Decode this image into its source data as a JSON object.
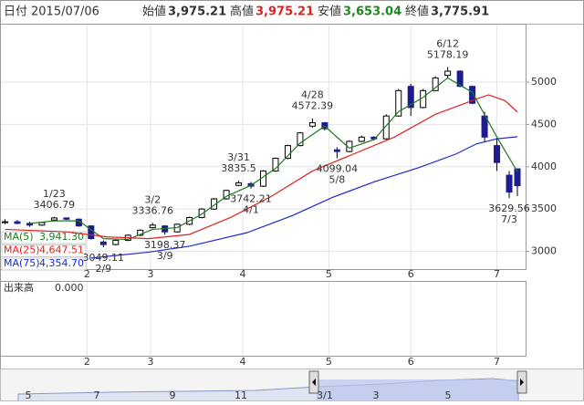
{
  "header": {
    "date_label": "日付",
    "date": "2015/07/06",
    "open_label": "始値",
    "open": "3,975.21",
    "high_label": "高値",
    "high": "3,975.21",
    "low_label": "安値",
    "low": "3,653.04",
    "close_label": "終値",
    "close": "3,775.91"
  },
  "chart_data": {
    "type": "candlestick",
    "x": [
      0,
      3,
      6,
      9,
      12,
      15,
      18,
      21,
      24,
      27,
      30,
      33,
      36,
      39,
      42,
      45,
      48,
      51,
      54,
      57,
      60,
      63,
      66,
      69,
      72,
      75,
      78,
      81,
      84,
      87,
      90,
      93,
      96,
      99,
      102,
      105,
      108,
      111,
      114,
      117,
      120,
      123,
      125
    ],
    "open": [
      3340,
      3350,
      3330,
      3310,
      3370,
      3395,
      3380,
      3300,
      3110,
      3080,
      3130,
      3190,
      3280,
      3300,
      3230,
      3320,
      3400,
      3500,
      3620,
      3780,
      3800,
      3770,
      3950,
      4100,
      4250,
      4480,
      4520,
      4200,
      4180,
      4300,
      4350,
      4330,
      4600,
      4950,
      4700,
      4900,
      5080,
      5130,
      4950,
      4600,
      4250,
      3900,
      3975.21
    ],
    "high": [
      3380,
      3370,
      3350,
      3350,
      3406.79,
      3400,
      3390,
      3310,
      3130,
      3140,
      3200,
      3260,
      3336.76,
      3310,
      3330,
      3410,
      3510,
      3630,
      3730,
      3835.5,
      3820,
      3960,
      4110,
      4260,
      4410,
      4572.39,
      4530,
      4230,
      4310,
      4370,
      4360,
      4620,
      4920,
      4980,
      4920,
      5070,
      5178.19,
      5140,
      4960,
      4650,
      4350,
      3950,
      3975.21
    ],
    "low": [
      3320,
      3320,
      3290,
      3300,
      3360,
      3370,
      3290,
      3140,
      3049.11,
      3070,
      3120,
      3180,
      3270,
      3198.37,
      3220,
      3310,
      3390,
      3490,
      3610,
      3770,
      3742.21,
      3760,
      3940,
      4090,
      4240,
      4460,
      4430,
      4099.04,
      4170,
      4290,
      4310,
      4320,
      4590,
      4600,
      4690,
      4890,
      5050,
      4940,
      4740,
      4300,
      3950,
      3629.56,
      3653.04
    ],
    "close": [
      3350,
      3330,
      3310,
      3340,
      3395,
      3380,
      3300,
      3150,
      3080,
      3130,
      3190,
      3250,
      3310,
      3230,
      3320,
      3400,
      3500,
      3620,
      3720,
      3810,
      3770,
      3950,
      4100,
      4250,
      4400,
      4520,
      4450,
      4180,
      4300,
      4350,
      4330,
      4600,
      4900,
      4700,
      4900,
      5050,
      5130,
      4950,
      4750,
      4350,
      4050,
      3700,
      3775.91
    ],
    "up_color": "#ffffff",
    "down_color": "#1c1c8e",
    "ylim": [
      2790,
      5680
    ],
    "yticks": [
      3000,
      3500,
      4000,
      4500,
      5000
    ],
    "xlim": [
      -1,
      127
    ],
    "xticks": [
      {
        "value": 20,
        "label": "2"
      },
      {
        "value": 35.5,
        "label": "3"
      },
      {
        "value": 58,
        "label": "4"
      },
      {
        "value": 79,
        "label": "5"
      },
      {
        "value": 99,
        "label": "6"
      },
      {
        "value": 120,
        "label": "7"
      }
    ],
    "grid": true,
    "moving_averages": [
      {
        "name": "MA(5)",
        "value_label": "3,941.30",
        "color": "#1d7a1d",
        "x": [
          6,
          12,
          18,
          24,
          30,
          36,
          42,
          48,
          54,
          60,
          66,
          72,
          78,
          84,
          90,
          96,
          102,
          108,
          114,
          120,
          125
        ],
        "values": [
          3330,
          3360,
          3360,
          3150,
          3140,
          3260,
          3280,
          3440,
          3650,
          3780,
          3980,
          4280,
          4480,
          4220,
          4320,
          4650,
          4820,
          5050,
          4880,
          4350,
          3941.3
        ]
      },
      {
        "name": "MA(25)",
        "value_label": "4,647.51",
        "color": "#e02020",
        "x": [
          0,
          15,
          25,
          35,
          45,
          55,
          65,
          75,
          85,
          95,
          105,
          115,
          118,
          122,
          125
        ],
        "values": [
          3260,
          3230,
          3170,
          3150,
          3200,
          3400,
          3650,
          3950,
          4150,
          4350,
          4620,
          4800,
          4850,
          4780,
          4647.51
        ]
      },
      {
        "name": "MA(75)",
        "value_label": "4,354.70",
        "color": "#1a2ad0",
        "x": [
          21,
          35,
          45,
          59,
          70,
          80,
          90,
          101,
          110,
          115,
          120,
          125
        ],
        "values": [
          2920,
          2990,
          3060,
          3220,
          3420,
          3640,
          3820,
          3990,
          4150,
          4270,
          4330,
          4354.7
        ]
      }
    ],
    "annotations": [
      {
        "date": "1/23",
        "value": 3406.79,
        "x": 12,
        "place": "above"
      },
      {
        "date": "2/9",
        "value": 3049.11,
        "x": 24,
        "place": "below"
      },
      {
        "date": "3/2",
        "value": 3336.76,
        "x": 36,
        "place": "above"
      },
      {
        "date": "3/9",
        "value": 3198.37,
        "x": 39,
        "place": "below"
      },
      {
        "date": "3/31",
        "value": 3835.5,
        "x": 57,
        "place": "above"
      },
      {
        "date": "4/1",
        "value": 3742.21,
        "x": 60,
        "place": "below"
      },
      {
        "date": "4/28",
        "value": 4572.39,
        "x": 75,
        "place": "above"
      },
      {
        "date": "5/8",
        "value": 4099.04,
        "x": 81,
        "place": "below"
      },
      {
        "date": "6/12",
        "value": 5178.19,
        "x": 108,
        "place": "above"
      },
      {
        "date": "7/3",
        "value": 3629.56,
        "x": 123,
        "place": "below"
      }
    ]
  },
  "volume_panel": {
    "label": "出来高",
    "value": "0.000"
  },
  "navigator": {
    "labels": [
      "5",
      "7",
      "9",
      "11",
      "3/1",
      "3",
      "5"
    ]
  }
}
